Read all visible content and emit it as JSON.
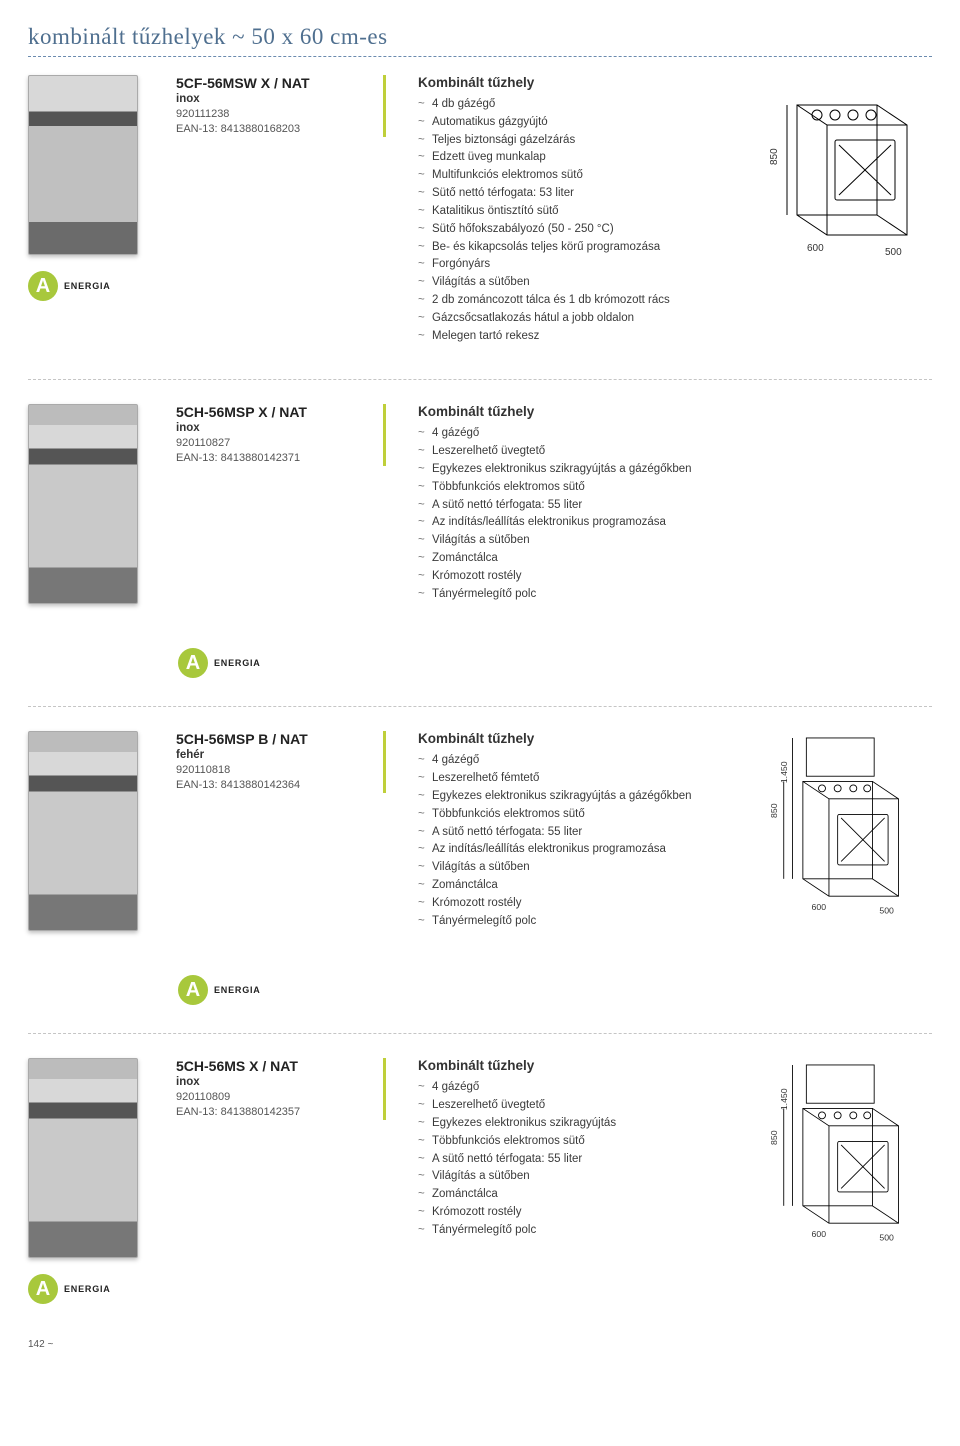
{
  "page": {
    "title": "kombinált tűzhelyek ~ 50 x 60 cm-es",
    "energy_label": "ENERGIA",
    "energy_letter": "A",
    "page_number": "142 ~"
  },
  "colors": {
    "title": "#4f6f8f",
    "accent_bar": "#bfcf3a",
    "energy_badge": "#a8c83c",
    "rule_blue": "#6b8baf",
    "rule_gray": "#c5c5c5",
    "text": "#333333",
    "background": "#ffffff"
  },
  "diagrams": {
    "type": "isometric-outline",
    "stroke": "#000000",
    "stroke_width": 1,
    "font_size": 10,
    "d1": {
      "height": "850",
      "width": "600",
      "depth": "500"
    },
    "d2": {
      "height_total": "1.450",
      "height_body": "850",
      "width": "600",
      "depth": "500"
    },
    "d3": {
      "height_total": "1.450",
      "height_body": "850",
      "width": "600",
      "depth": "500"
    }
  },
  "products": [
    {
      "model": "5CF-56MSW X / NAT",
      "variant": "inox",
      "sku": "920111238",
      "ean": "EAN-13: 8413880168203",
      "type_label": "Kombinált tűzhely",
      "image_style": "inox",
      "features": [
        "4 db gázégő",
        "Automatikus gázgyújtó",
        "Teljes biztonsági gázelzárás",
        "Edzett üveg munkalap",
        "Multifunkciós elektromos sütő",
        "Sütő nettó térfogata: 53 liter",
        "Katalitikus öntisztító sütő",
        "Sütő hőfokszabályozó (50 - 250 °C)",
        "Be- és kikapcsolás teljes körű programozása",
        "Forgónyárs",
        "Világítás a sütőben",
        "2 db zománcozott tálca és 1 db krómozott rács",
        "Gázcsőcsatlakozás hátul a jobb oldalon",
        "Melegen tartó rekesz"
      ]
    },
    {
      "model": "5CH-56MSP X / NAT",
      "variant": "inox",
      "sku": "920110827",
      "ean": "EAN-13: 8413880142371",
      "type_label": "Kombinált tűzhely",
      "image_style": "lid",
      "features": [
        "4 gázégő",
        "Leszerelhető üvegtető",
        "Egykezes elektronikus szikragyújtás a gázégőkben",
        "Többfunkciós elektromos sütő",
        "A sütő nettó térfogata: 55 liter",
        "Az indítás/leállítás elektronikus programozása",
        "Világítás a sütőben",
        "Zománctálca",
        "Krómozott rostély",
        "Tányérmelegítő polc"
      ]
    },
    {
      "model": "5CH-56MSP B / NAT",
      "variant": "fehér",
      "sku": "920110818",
      "ean": "EAN-13: 8413880142364",
      "type_label": "Kombinált tűzhely",
      "image_style": "white",
      "features": [
        "4 gázégő",
        "Leszerelhető fémtető",
        "Egykezes elektronikus szikragyújtás a gázégőkben",
        "Többfunkciós elektromos sütő",
        "A sütő nettó térfogata: 55 liter",
        "Az indítás/leállítás elektronikus programozása",
        "Világítás a sütőben",
        "Zománctálca",
        "Krómozott rostély",
        "Tányérmelegítő polc"
      ]
    },
    {
      "model": "5CH-56MS X / NAT",
      "variant": "inox",
      "sku": "920110809",
      "ean": "EAN-13: 8413880142357",
      "type_label": "Kombinált tűzhely",
      "image_style": "lid",
      "features": [
        "4 gázégő",
        "Leszerelhető üvegtető",
        "Egykezes elektronikus szikragyújtás",
        "Többfunkciós elektromos sütő",
        "A sütő nettó térfogata: 55 liter",
        "Világítás a sütőben",
        "Zománctálca",
        "Krómozott rostély",
        "Tányérmelegítő polc"
      ]
    }
  ]
}
